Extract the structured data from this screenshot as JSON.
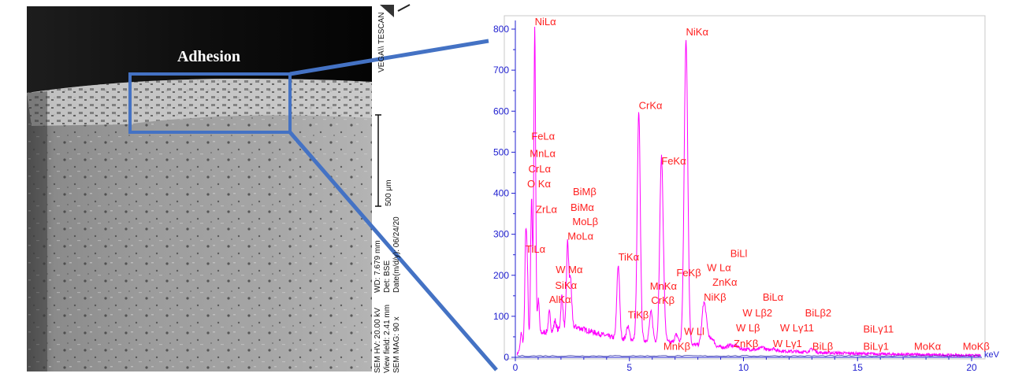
{
  "sem_panel": {
    "adhesion_label": "Adhesion",
    "logo_text": "VEGA\\\\ TESCAN",
    "scale_bar_label": "500 μm",
    "info_lines": [
      "SEM HV: 20.00 kV",
      "View field: 2.41 mm",
      "SEM MAG: 90 x"
    ],
    "info_lines_2": [
      "WD: 7.679 mm",
      "Det: BSE",
      "Date(m/d/y): 06/24/20"
    ]
  },
  "colors": {
    "highlight_box": "#4472c4",
    "spectrum_line": "#ff00ff",
    "peak_labels": "#ff2020",
    "axis": "#2020d0",
    "background_line": "#2020a0"
  },
  "chart_data": {
    "type": "line",
    "xlabel": "keV",
    "ylabel": "",
    "xlim": [
      0,
      20.5
    ],
    "ylim": [
      0,
      830
    ],
    "x_ticks": [
      0,
      5,
      10,
      15,
      20
    ],
    "y_ticks": [
      0,
      100,
      200,
      300,
      400,
      500,
      600,
      700,
      800
    ],
    "grid": false,
    "peaks": [
      {
        "keV": 0.26,
        "counts": 60
      },
      {
        "keV": 0.45,
        "counts": 270
      },
      {
        "keV": 0.52,
        "counts": 215
      },
      {
        "keV": 0.71,
        "counts": 390
      },
      {
        "keV": 0.85,
        "counts": 800
      },
      {
        "keV": 1.01,
        "counts": 140
      },
      {
        "keV": 1.49,
        "counts": 110
      },
      {
        "keV": 1.74,
        "counts": 90
      },
      {
        "keV": 2.04,
        "counts": 150
      },
      {
        "keV": 2.29,
        "counts": 280
      },
      {
        "keV": 2.42,
        "counts": 190
      },
      {
        "keV": 4.51,
        "counts": 225
      },
      {
        "keV": 4.93,
        "counts": 75
      },
      {
        "keV": 5.41,
        "counts": 595
      },
      {
        "keV": 5.95,
        "counts": 110
      },
      {
        "keV": 6.4,
        "counts": 460
      },
      {
        "keV": 6.49,
        "counts": 95
      },
      {
        "keV": 7.06,
        "counts": 55
      },
      {
        "keV": 7.48,
        "counts": 770
      },
      {
        "keV": 8.26,
        "counts": 125
      },
      {
        "keV": 8.4,
        "counts": 60
      },
      {
        "keV": 8.64,
        "counts": 45
      },
      {
        "keV": 9.42,
        "counts": 30
      },
      {
        "keV": 9.67,
        "counts": 28
      },
      {
        "keV": 10.84,
        "counts": 25
      },
      {
        "keV": 11.29,
        "counts": 22
      },
      {
        "keV": 13.02,
        "counts": 20
      }
    ],
    "continuum": [
      {
        "keV": 0.1,
        "counts": 10
      },
      {
        "keV": 0.4,
        "counts": 40
      },
      {
        "keV": 1.2,
        "counts": 60
      },
      {
        "keV": 2.6,
        "counts": 75
      },
      {
        "keV": 3.5,
        "counts": 60
      },
      {
        "keV": 4.5,
        "counts": 45
      },
      {
        "keV": 6.0,
        "counts": 40
      },
      {
        "keV": 8.0,
        "counts": 30
      },
      {
        "keV": 10.0,
        "counts": 20
      },
      {
        "keV": 13.0,
        "counts": 12
      },
      {
        "keV": 16.0,
        "counts": 8
      },
      {
        "keV": 20.5,
        "counts": 4
      }
    ],
    "peak_labels": [
      {
        "text": "NiLα",
        "keV": 0.85,
        "counts": 810
      },
      {
        "text": "FeLα",
        "keV": 0.7,
        "counts": 530
      },
      {
        "text": "MnLα",
        "keV": 0.63,
        "counts": 488
      },
      {
        "text": "CrLα",
        "keV": 0.57,
        "counts": 451
      },
      {
        "text": "O Kα",
        "keV": 0.52,
        "counts": 414
      },
      {
        "text": "ZrLα",
        "keV": 0.9,
        "counts": 352
      },
      {
        "text": "TiLα",
        "keV": 0.45,
        "counts": 255
      },
      {
        "text": "BiMβ",
        "keV": 2.52,
        "counts": 395
      },
      {
        "text": "BiMα",
        "keV": 2.42,
        "counts": 357
      },
      {
        "text": "MoLβ",
        "keV": 2.5,
        "counts": 322
      },
      {
        "text": "MoLα",
        "keV": 2.29,
        "counts": 287
      },
      {
        "text": "W Mα",
        "keV": 1.77,
        "counts": 205
      },
      {
        "text": "SiKα",
        "keV": 1.74,
        "counts": 167
      },
      {
        "text": "AlKα",
        "keV": 1.48,
        "counts": 132
      },
      {
        "text": "CrKα",
        "keV": 5.41,
        "counts": 605
      },
      {
        "text": "FeKα",
        "keV": 6.4,
        "counts": 470
      },
      {
        "text": "NiKα",
        "keV": 7.48,
        "counts": 785
      },
      {
        "text": "TiKα",
        "keV": 4.51,
        "counts": 236
      },
      {
        "text": "TiKβ",
        "keV": 4.93,
        "counts": 95
      },
      {
        "text": "MnKα",
        "keV": 5.9,
        "counts": 165
      },
      {
        "text": "CrKβ",
        "keV": 5.95,
        "counts": 130
      },
      {
        "text": "MnKβ",
        "keV": 6.49,
        "counts": 18
      },
      {
        "text": "FeKβ",
        "keV": 7.06,
        "counts": 198
      },
      {
        "text": "W Ll",
        "keV": 7.39,
        "counts": 55
      },
      {
        "text": "BiLl",
        "keV": 9.42,
        "counts": 245
      },
      {
        "text": "W Lα",
        "keV": 8.4,
        "counts": 210
      },
      {
        "text": "ZnKα",
        "keV": 8.64,
        "counts": 175
      },
      {
        "text": "NiKβ",
        "keV": 8.26,
        "counts": 138
      },
      {
        "text": "BiLα",
        "keV": 10.84,
        "counts": 138
      },
      {
        "text": "W Lβ2",
        "keV": 9.96,
        "counts": 100
      },
      {
        "text": "W Lβ",
        "keV": 9.67,
        "counts": 63
      },
      {
        "text": "ZnKβ",
        "keV": 9.57,
        "counts": 25
      },
      {
        "text": "W Lγ11",
        "keV": 11.6,
        "counts": 63
      },
      {
        "text": "W Lγ1",
        "keV": 11.29,
        "counts": 25
      },
      {
        "text": "BiLβ2",
        "keV": 12.7,
        "counts": 100
      },
      {
        "text": "BiLβ",
        "keV": 13.02,
        "counts": 18
      },
      {
        "text": "BiLγ11",
        "keV": 15.25,
        "counts": 60
      },
      {
        "text": "BiLγ1",
        "keV": 15.25,
        "counts": 18
      },
      {
        "text": "MoKα",
        "keV": 17.48,
        "counts": 18
      },
      {
        "text": "MoKβ",
        "keV": 19.61,
        "counts": 18
      }
    ]
  }
}
